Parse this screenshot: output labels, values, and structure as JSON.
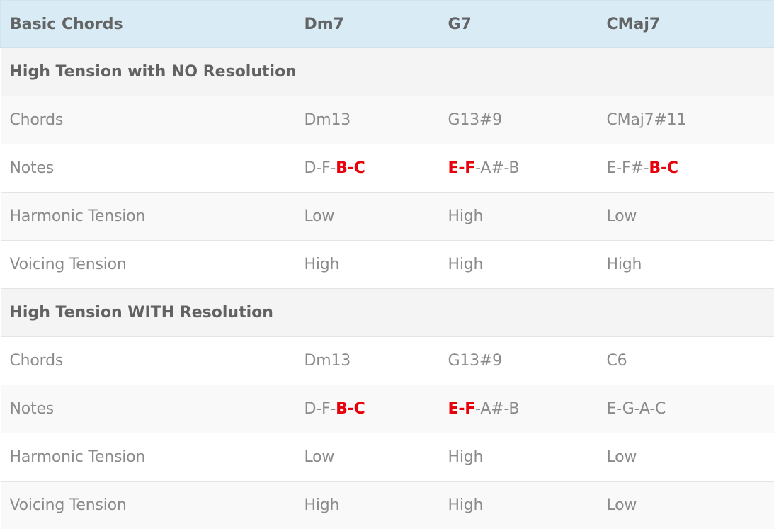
{
  "colors": {
    "header_bg": "#d9ecf5",
    "section_bg": "#f4f4f4",
    "row_odd_bg": "#f9f9f9",
    "row_even_bg": "#ffffff",
    "highlight": "#e8000b",
    "text": "#8a8a8a",
    "header_text": "#636466"
  },
  "header": {
    "col1": "Basic Chords",
    "col2": "Dm7",
    "col3": "G7",
    "col4": "CMaj7"
  },
  "sections": [
    {
      "title": "High Tension with NO Resolution",
      "rows": [
        {
          "label": "Chords",
          "c2": "Dm13",
          "c3": "G13#9",
          "c4": "CMaj7#11"
        },
        {
          "label": "Notes",
          "c2_plain": "D-F-",
          "c2_hl": "B-C",
          "c3_hl": "E-F",
          "c3_plain": "-A#-B",
          "c4_plain": "E-F#-",
          "c4_hl": "B-C"
        },
        {
          "label": "Harmonic Tension",
          "c2": "Low",
          "c3": "High",
          "c4": "Low"
        },
        {
          "label": "Voicing Tension",
          "c2": "High",
          "c3": "High",
          "c4": "High"
        }
      ]
    },
    {
      "title": "High Tension WITH Resolution",
      "rows": [
        {
          "label": "Chords",
          "c2": "Dm13",
          "c3": "G13#9",
          "c4": "C6"
        },
        {
          "label": "Notes",
          "c2_plain": "D-F-",
          "c2_hl": "B-C",
          "c3_hl": "E-F",
          "c3_plain": "-A#-B",
          "c4": "E-G-A-C"
        },
        {
          "label": "Harmonic Tension",
          "c2": "Low",
          "c3": "High",
          "c4": "Low"
        },
        {
          "label": "Voicing Tension",
          "c2": "High",
          "c3": "High",
          "c4": "Low"
        }
      ]
    }
  ]
}
